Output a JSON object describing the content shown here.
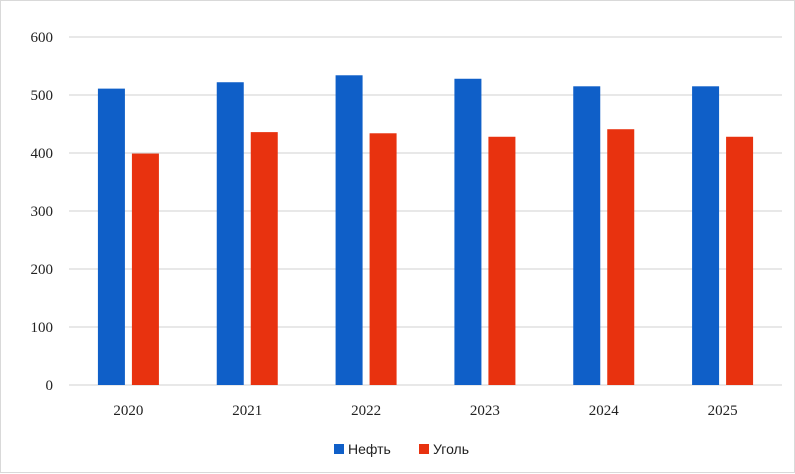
{
  "chart_data": {
    "type": "bar",
    "categories": [
      "2020",
      "2021",
      "2022",
      "2023",
      "2024",
      "2025"
    ],
    "series": [
      {
        "name": "Нефть",
        "values": [
          511,
          522,
          534,
          528,
          515,
          515
        ],
        "color": "#0f5fc8"
      },
      {
        "name": "Уголь",
        "values": [
          399,
          436,
          434,
          428,
          441,
          428
        ],
        "color": "#e8320f"
      }
    ],
    "ylim": [
      0,
      600
    ],
    "yticks": [
      0,
      100,
      200,
      300,
      400,
      500,
      600
    ],
    "grid": true,
    "legend_position": "bottom-center"
  }
}
